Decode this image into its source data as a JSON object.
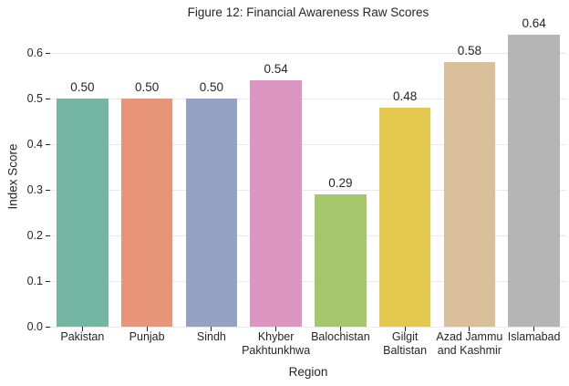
{
  "chart_data": {
    "type": "bar",
    "title": "Figure 12: Financial Awareness Raw Scores",
    "xlabel": "Region",
    "ylabel": "Index Score",
    "categories": [
      "Pakistan",
      "Punjab",
      "Sindh",
      "Khyber Pakhtunkhwa",
      "Balochistan",
      "Gilgit Baltistan",
      "Azad Jammu and Kashmir",
      "Islamabad"
    ],
    "category_label_lines": [
      [
        "Pakistan"
      ],
      [
        "Punjab"
      ],
      [
        "Sindh"
      ],
      [
        "Khyber",
        "Pakhtunkhwa"
      ],
      [
        "Balochistan"
      ],
      [
        "Gilgit",
        "Baltistan"
      ],
      [
        "Azad Jammu",
        "and Kashmir"
      ],
      [
        "Islamabad"
      ]
    ],
    "values": [
      0.5,
      0.5,
      0.5,
      0.54,
      0.29,
      0.48,
      0.58,
      0.64
    ],
    "value_labels": [
      "0.50",
      "0.50",
      "0.50",
      "0.54",
      "0.29",
      "0.48",
      "0.58",
      "0.64"
    ],
    "bar_colors": [
      "#74b6a1",
      "#e89478",
      "#93a2c2",
      "#da95c0",
      "#a3c76a",
      "#e4c84d",
      "#d9c09b",
      "#b5b5b5"
    ],
    "ylim": [
      0.0,
      0.66
    ],
    "yticks": [
      0.0,
      0.1,
      0.2,
      0.3,
      0.4,
      0.5,
      0.6
    ],
    "ytick_labels": [
      "0.0",
      "0.1",
      "0.2",
      "0.3",
      "0.4",
      "0.5",
      "0.6"
    ],
    "grid": "horizontal",
    "grid_color": "#e9e9e9",
    "background_color": "#ffffff",
    "text_color": "#262626",
    "legend": "none"
  }
}
